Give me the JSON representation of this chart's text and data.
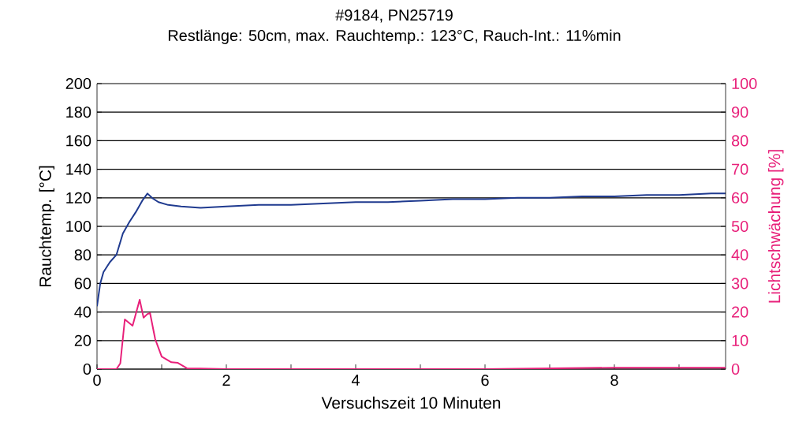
{
  "chart_data": {
    "type": "line",
    "title": "#9184, PN25719",
    "subtitle": "Restlänge: 50cm, max. Rauchtemp.: 123°C, Rauch-Int.: 11%min",
    "xlabel": "Versuchszeit 10 Minuten",
    "ylabel": "Rauchtemp. [°C]",
    "y2label": "Lichtschwächung [%]",
    "xlim": [
      0,
      9.72
    ],
    "xticks": [
      0,
      {
        "value": 1,
        "label": null
      },
      2,
      {
        "value": 3,
        "label": null
      },
      4,
      {
        "value": 5,
        "label": null
      },
      6,
      {
        "value": 7,
        "label": null
      },
      8,
      {
        "value": 9,
        "label": null
      }
    ],
    "ylim": [
      0,
      200
    ],
    "yticks": [
      0,
      20,
      40,
      60,
      80,
      100,
      120,
      140,
      160,
      180,
      200
    ],
    "y2lim": [
      0,
      100
    ],
    "y2ticks": [
      0,
      10,
      20,
      30,
      40,
      50,
      60,
      70,
      80,
      90,
      100
    ],
    "grid": "y",
    "marker": "none",
    "series": [
      {
        "color": "#1f3a8f",
        "x": [
          0,
          0.05,
          0.1,
          0.2,
          0.3,
          0.4,
          0.5,
          0.6,
          0.7,
          0.78,
          0.85,
          0.95,
          1.1,
          1.3,
          1.6,
          2,
          2.5,
          3,
          3.5,
          4,
          4.5,
          5,
          5.5,
          6,
          6.5,
          7,
          7.5,
          8,
          8.5,
          9,
          9.5,
          9.72
        ],
        "values": [
          44,
          60,
          68,
          75,
          80,
          95,
          103,
          110,
          118,
          123,
          120,
          117,
          115,
          114,
          113,
          114,
          115,
          115,
          116,
          117,
          117,
          118,
          119,
          119,
          120,
          120,
          121,
          121,
          122,
          122,
          123,
          123
        ]
      },
      {
        "color": "#e8207a",
        "axis": "y2",
        "x": [
          0,
          0.3,
          0.36,
          0.43,
          0.55,
          0.66,
          0.72,
          0.78,
          0.82,
          0.9,
          1.0,
          1.15,
          1.25,
          1.39,
          2,
          4,
          6,
          8,
          9.72
        ],
        "values": [
          0,
          0,
          2,
          17.4,
          15.2,
          24.3,
          18,
          19.3,
          19.6,
          10.5,
          4.4,
          2.4,
          2.2,
          0.3,
          0,
          0,
          0,
          0.5,
          0.5
        ]
      }
    ]
  }
}
